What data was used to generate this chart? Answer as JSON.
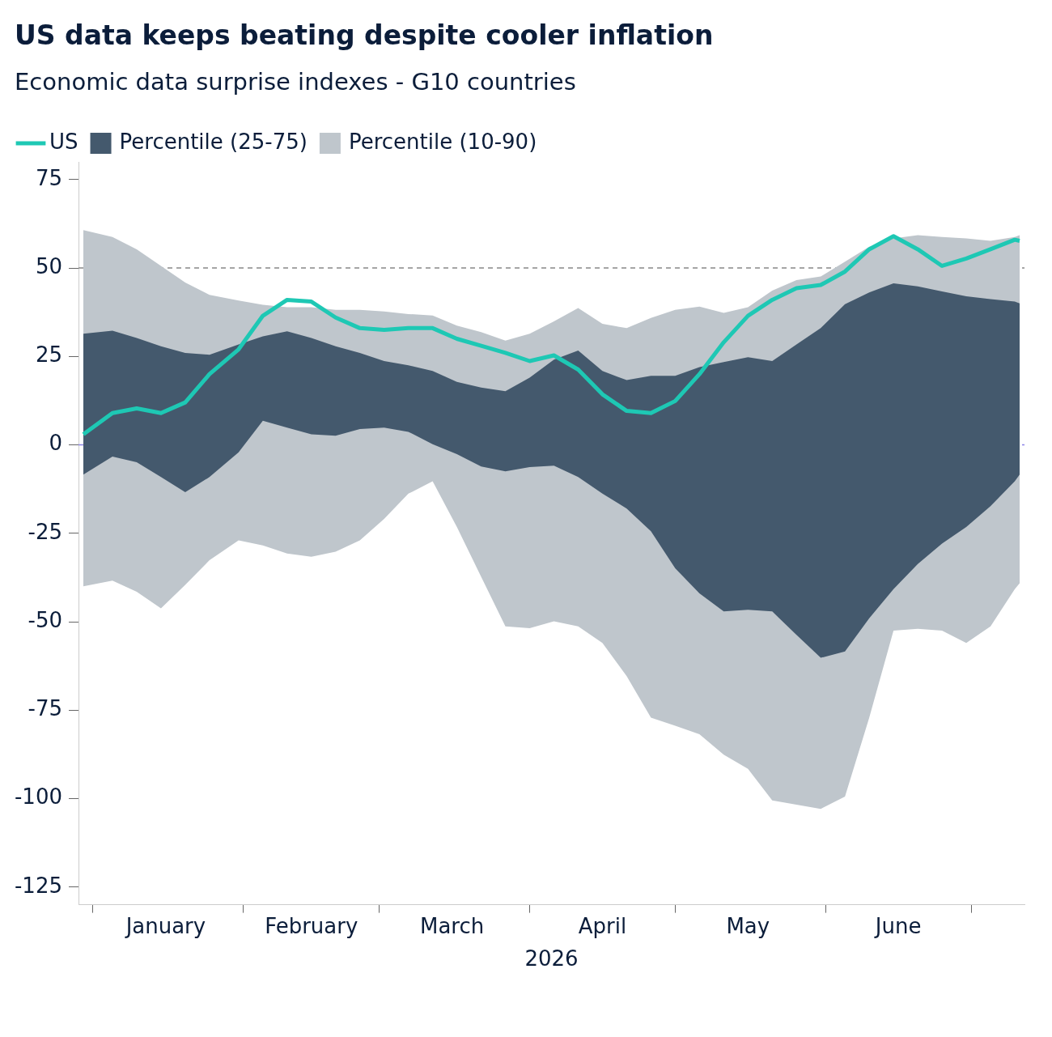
{
  "chart_data": {
    "type": "line",
    "title": "US data keeps beating despite cooler inflation",
    "subtitle": "Economic data surprise indexes - G10 countries",
    "xlabel": "2026",
    "x": [
      "2025-12-30",
      "2026-01-05",
      "2026-01-10",
      "2026-01-15",
      "2026-01-20",
      "2026-01-25",
      "2026-01-31",
      "2026-02-05",
      "2026-02-10",
      "2026-02-15",
      "2026-02-20",
      "2026-02-25",
      "2026-03-02",
      "2026-03-07",
      "2026-03-12",
      "2026-03-17",
      "2026-03-22",
      "2026-03-27",
      "2026-04-01",
      "2026-04-06",
      "2026-04-11",
      "2026-04-16",
      "2026-04-21",
      "2026-04-26",
      "2026-05-01",
      "2026-05-06",
      "2026-05-11",
      "2026-05-16",
      "2026-05-21",
      "2026-05-26",
      "2026-05-31",
      "2026-06-05",
      "2026-06-10",
      "2026-06-15",
      "2026-06-20",
      "2026-06-25",
      "2026-06-30",
      "2026-07-05",
      "2026-07-10",
      "2026-07-11"
    ],
    "series": [
      {
        "name": "US",
        "type": "line",
        "color": "#1ec8b4",
        "values": [
          3,
          9,
          10.3,
          9,
          12,
          20,
          27,
          36.5,
          41,
          40.5,
          36,
          33,
          32.5,
          33,
          33,
          30,
          28,
          26,
          23.7,
          25.3,
          21.3,
          14.3,
          9.6,
          9,
          12.4,
          20,
          29,
          36.5,
          41,
          44.3,
          45.2,
          49,
          55.3,
          59,
          55.3,
          50.6,
          52.7,
          55.3,
          58,
          57.7
        ]
      },
      {
        "name": "Percentile (25-75)",
        "type": "line",
        "color": "#44596d",
        "values": [
          null,
          null,
          null,
          null,
          null,
          null,
          null,
          null,
          null,
          null,
          null,
          null,
          null,
          null,
          null,
          null,
          null,
          null,
          null,
          null,
          null,
          null,
          null,
          null,
          null,
          null,
          null,
          null,
          null,
          null,
          null,
          null,
          null,
          null,
          null,
          null,
          null,
          null,
          null,
          null
        ],
        "lower": [
          -8.4,
          -3.3,
          -4.9,
          -9.1,
          -13.4,
          -9.1,
          -2.1,
          6.8,
          4.9,
          3,
          2.6,
          4.5,
          4.9,
          3.7,
          0.2,
          -2.6,
          -6.1,
          -7.5,
          -6.3,
          -5.9,
          -9.1,
          -13.8,
          -18,
          -24.4,
          -34.9,
          -42,
          -47.1,
          -46.6,
          -47.1,
          -53.7,
          -60.2,
          -58.4,
          -49,
          -40.8,
          -33.7,
          -27.9,
          -23.2,
          -17.3,
          -10.3,
          -8.4
        ],
        "upper": [
          31.4,
          32.3,
          30.2,
          27.9,
          26,
          25.5,
          28.4,
          30.7,
          32.1,
          30.2,
          27.9,
          26,
          23.7,
          22.5,
          20.9,
          17.8,
          16.2,
          15.2,
          19,
          24.1,
          26.7,
          20.9,
          18.3,
          19.5,
          19.5,
          22,
          23.4,
          24.8,
          23.7,
          28.4,
          33,
          39.8,
          43.1,
          45.7,
          44.8,
          43.4,
          42,
          41.2,
          40.5,
          40
        ]
      },
      {
        "name": "Percentile (10-90)",
        "type": "line",
        "color": "#bfc6cc",
        "values": [
          null,
          null,
          null,
          null,
          null,
          null,
          null,
          null,
          null,
          null,
          null,
          null,
          null,
          null,
          null,
          null,
          null,
          null,
          null,
          null,
          null,
          null,
          null,
          null,
          null,
          null,
          null,
          null,
          null,
          null,
          null,
          null,
          null,
          null,
          null,
          null,
          null,
          null,
          null,
          null
        ],
        "lower": [
          -40,
          -38.4,
          -41.5,
          -46.2,
          -39.6,
          -32.6,
          -27,
          -28.4,
          -30.7,
          -31.6,
          -30.2,
          -27,
          -20.9,
          -13.8,
          -10.3,
          -23.2,
          -37.3,
          -51.3,
          -51.8,
          -49.9,
          -51.3,
          -56,
          -65.4,
          -77.1,
          -79.4,
          -81.8,
          -87.6,
          -91.6,
          -100.5,
          -101.7,
          -102.9,
          -99.4,
          -77.1,
          -52.5,
          -52,
          -52.5,
          -56,
          -51.3,
          -40.8,
          -39.1
        ],
        "upper": [
          60.7,
          58.8,
          55.3,
          50.6,
          45.9,
          42.4,
          40.8,
          39.6,
          38.9,
          38.9,
          38.2,
          38.2,
          37.7,
          37,
          36.6,
          33.7,
          31.9,
          29.5,
          31.4,
          34.9,
          38.7,
          34.2,
          33,
          35.9,
          38.2,
          39.1,
          37.3,
          38.9,
          43.6,
          46.6,
          47.6,
          51.8,
          56,
          58.4,
          59.3,
          58.8,
          58.4,
          57.7,
          58.8,
          59.3
        ]
      }
    ],
    "xlim": [
      "2025-12-29",
      "2026-07-12"
    ],
    "xticks": [
      {
        "value": "2026-01-01",
        "label": null
      },
      {
        "value": "2026-01-16",
        "label": "January"
      },
      {
        "value": "2026-02-01",
        "label": null
      },
      {
        "value": "2026-02-15",
        "label": "February"
      },
      {
        "value": "2026-03-01",
        "label": null
      },
      {
        "value": "2026-03-16",
        "label": "March"
      },
      {
        "value": "2026-04-01",
        "label": null
      },
      {
        "value": "2026-04-16",
        "label": "April"
      },
      {
        "value": "2026-05-01",
        "label": null
      },
      {
        "value": "2026-05-16",
        "label": "May"
      },
      {
        "value": "2026-06-01",
        "label": null
      },
      {
        "value": "2026-06-16",
        "label": "June"
      },
      {
        "value": "2026-07-01",
        "label": null
      }
    ],
    "ylim": [
      -130,
      80
    ],
    "yticks": [
      -125,
      -100,
      -75,
      -50,
      -25,
      0,
      25,
      50,
      75
    ],
    "ref_lines": [
      {
        "axis": "y",
        "value": 50,
        "color": "#888888",
        "line_style": "dashed"
      },
      {
        "axis": "y",
        "value": 0,
        "color": "#8c84e8",
        "line_style": "dashed"
      }
    ],
    "legend": "top left",
    "grid": false
  }
}
